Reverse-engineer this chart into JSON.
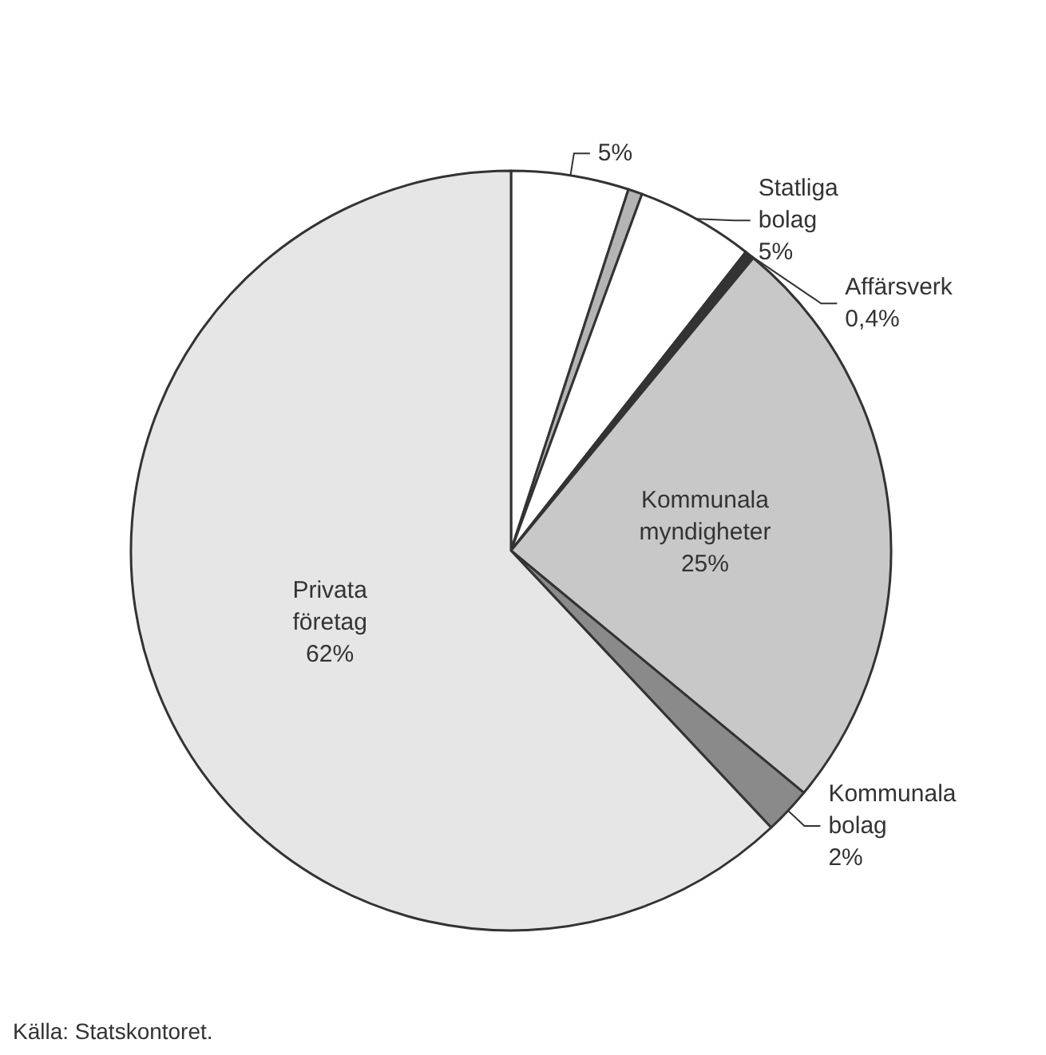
{
  "chart_data": {
    "type": "pie",
    "categories": [
      null,
      null,
      "Statliga bolag",
      "Affärsverk",
      "Kommunala myndigheter",
      "Kommunala bolag",
      "Privata företag"
    ],
    "values": [
      5,
      0.6,
      5,
      0.4,
      25,
      2,
      62
    ],
    "value_labels": [
      "5%",
      null,
      "5%",
      "0,4%",
      "25%",
      "2%",
      "62%"
    ],
    "colors": [
      "#ffffff",
      "#b4b4b4",
      "#ffffff",
      "#333333",
      "#c8c8c8",
      "#8a8a8a",
      "#e6e6e6"
    ],
    "legend": false,
    "annotations": [
      "Källa: Statskontoret."
    ]
  }
}
